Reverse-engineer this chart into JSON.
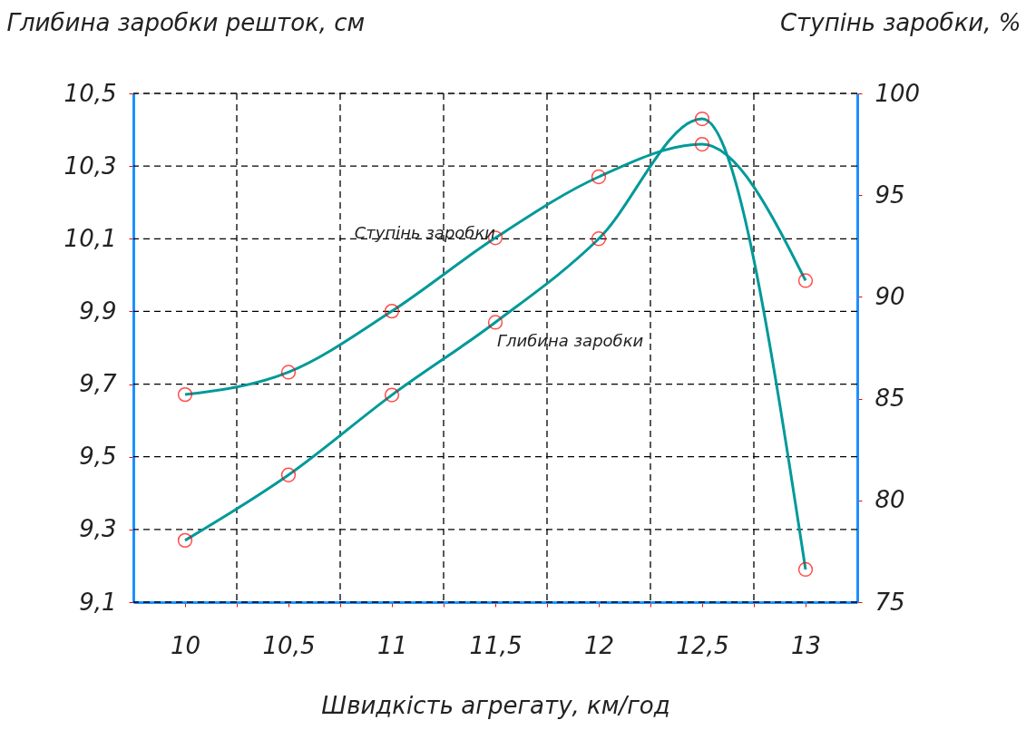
{
  "chart_data": {
    "type": "line",
    "xlabel": "Швидкість агрегату, км/год",
    "ylabel": "Глибина заробки решток, см",
    "y2label": "Ступінь заробки, %",
    "x": [
      10,
      10.5,
      11,
      11.5,
      12,
      12.5,
      13
    ],
    "xlim": [
      9.75,
      13.25
    ],
    "xticks": [
      {
        "value": 10,
        "label": "10"
      },
      {
        "value": 10.25,
        "label": null
      },
      {
        "value": 10.5,
        "label": "10,5"
      },
      {
        "value": 10.75,
        "label": null
      },
      {
        "value": 11,
        "label": "11"
      },
      {
        "value": 11.25,
        "label": null
      },
      {
        "value": 11.5,
        "label": "11,5"
      },
      {
        "value": 11.75,
        "label": null
      },
      {
        "value": 12,
        "label": "12"
      },
      {
        "value": 12.25,
        "label": null
      },
      {
        "value": 12.5,
        "label": "12,5"
      },
      {
        "value": 12.75,
        "label": null
      },
      {
        "value": 13,
        "label": "13"
      }
    ],
    "ylim": [
      9.1,
      10.5
    ],
    "yticks": [
      {
        "value": 9.1,
        "label": "9,1"
      },
      {
        "value": 9.3,
        "label": "9,3"
      },
      {
        "value": 9.5,
        "label": "9,5"
      },
      {
        "value": 9.7,
        "label": "9,7"
      },
      {
        "value": 9.9,
        "label": "9,9"
      },
      {
        "value": 10.1,
        "label": "10,1"
      },
      {
        "value": 10.3,
        "label": "10,3"
      },
      {
        "value": 10.5,
        "label": "10,5"
      }
    ],
    "y2lim": [
      75,
      100
    ],
    "y2ticks": [
      75,
      80,
      85,
      90,
      95,
      100
    ],
    "series": [
      {
        "name": "Глибина заробки",
        "color": "#009999",
        "values": [
          9.27,
          9.45,
          9.67,
          9.87,
          10.1,
          10.43,
          9.19
        ]
      },
      {
        "name": "Ступінь заробки",
        "color": "#009999",
        "axis": "y2",
        "values": [
          85.2,
          86.3,
          89.3,
          92.9,
          95.9,
          97.5,
          90.8
        ]
      }
    ],
    "grid": true,
    "marker": "circle",
    "line_style": "solid"
  }
}
